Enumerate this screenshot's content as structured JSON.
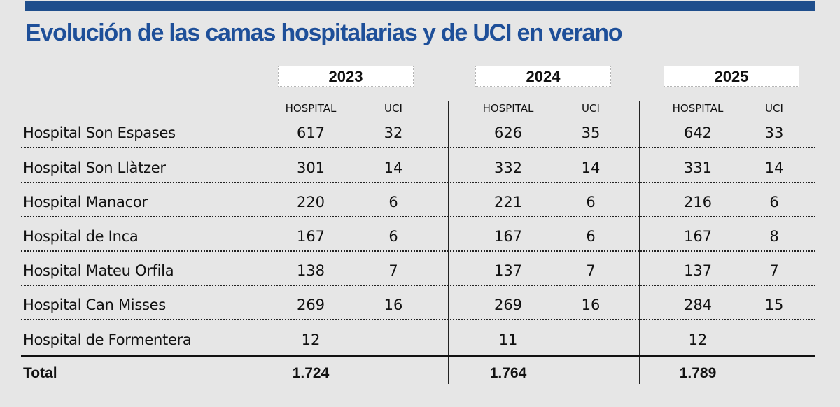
{
  "title": "Evolución de las camas hospitalarias y de UCI en verano",
  "chart_data": {
    "type": "table",
    "title": "Evolución de las camas hospitalarias y de UCI en verano",
    "years": [
      "2023",
      "2024",
      "2025"
    ],
    "column_headers": [
      "HOSPITAL",
      "UCI"
    ],
    "rows": [
      {
        "name": "Hospital Son Espases",
        "values": [
          [
            "617",
            "32"
          ],
          [
            "626",
            "35"
          ],
          [
            "642",
            "33"
          ]
        ]
      },
      {
        "name": "Hospital Son Llàtzer",
        "values": [
          [
            "301",
            "14"
          ],
          [
            "332",
            "14"
          ],
          [
            "331",
            "14"
          ]
        ]
      },
      {
        "name": "Hospital Manacor",
        "values": [
          [
            "220",
            "6"
          ],
          [
            "221",
            "6"
          ],
          [
            "216",
            "6"
          ]
        ]
      },
      {
        "name": "Hospital de Inca",
        "values": [
          [
            "167",
            "6"
          ],
          [
            "167",
            "6"
          ],
          [
            "167",
            "8"
          ]
        ]
      },
      {
        "name": "Hospital Mateu Orfila",
        "values": [
          [
            "138",
            "7"
          ],
          [
            "137",
            "7"
          ],
          [
            "137",
            "7"
          ]
        ]
      },
      {
        "name": "Hospital Can Misses",
        "values": [
          [
            "269",
            "16"
          ],
          [
            "269",
            "16"
          ],
          [
            "284",
            "15"
          ]
        ]
      },
      {
        "name": "Hospital de Formentera",
        "values": [
          [
            "12",
            ""
          ],
          [
            "11",
            ""
          ],
          [
            "12",
            ""
          ]
        ]
      }
    ],
    "total": {
      "label": "Total",
      "values": [
        "1.724",
        "1.764",
        "1.789"
      ]
    }
  }
}
